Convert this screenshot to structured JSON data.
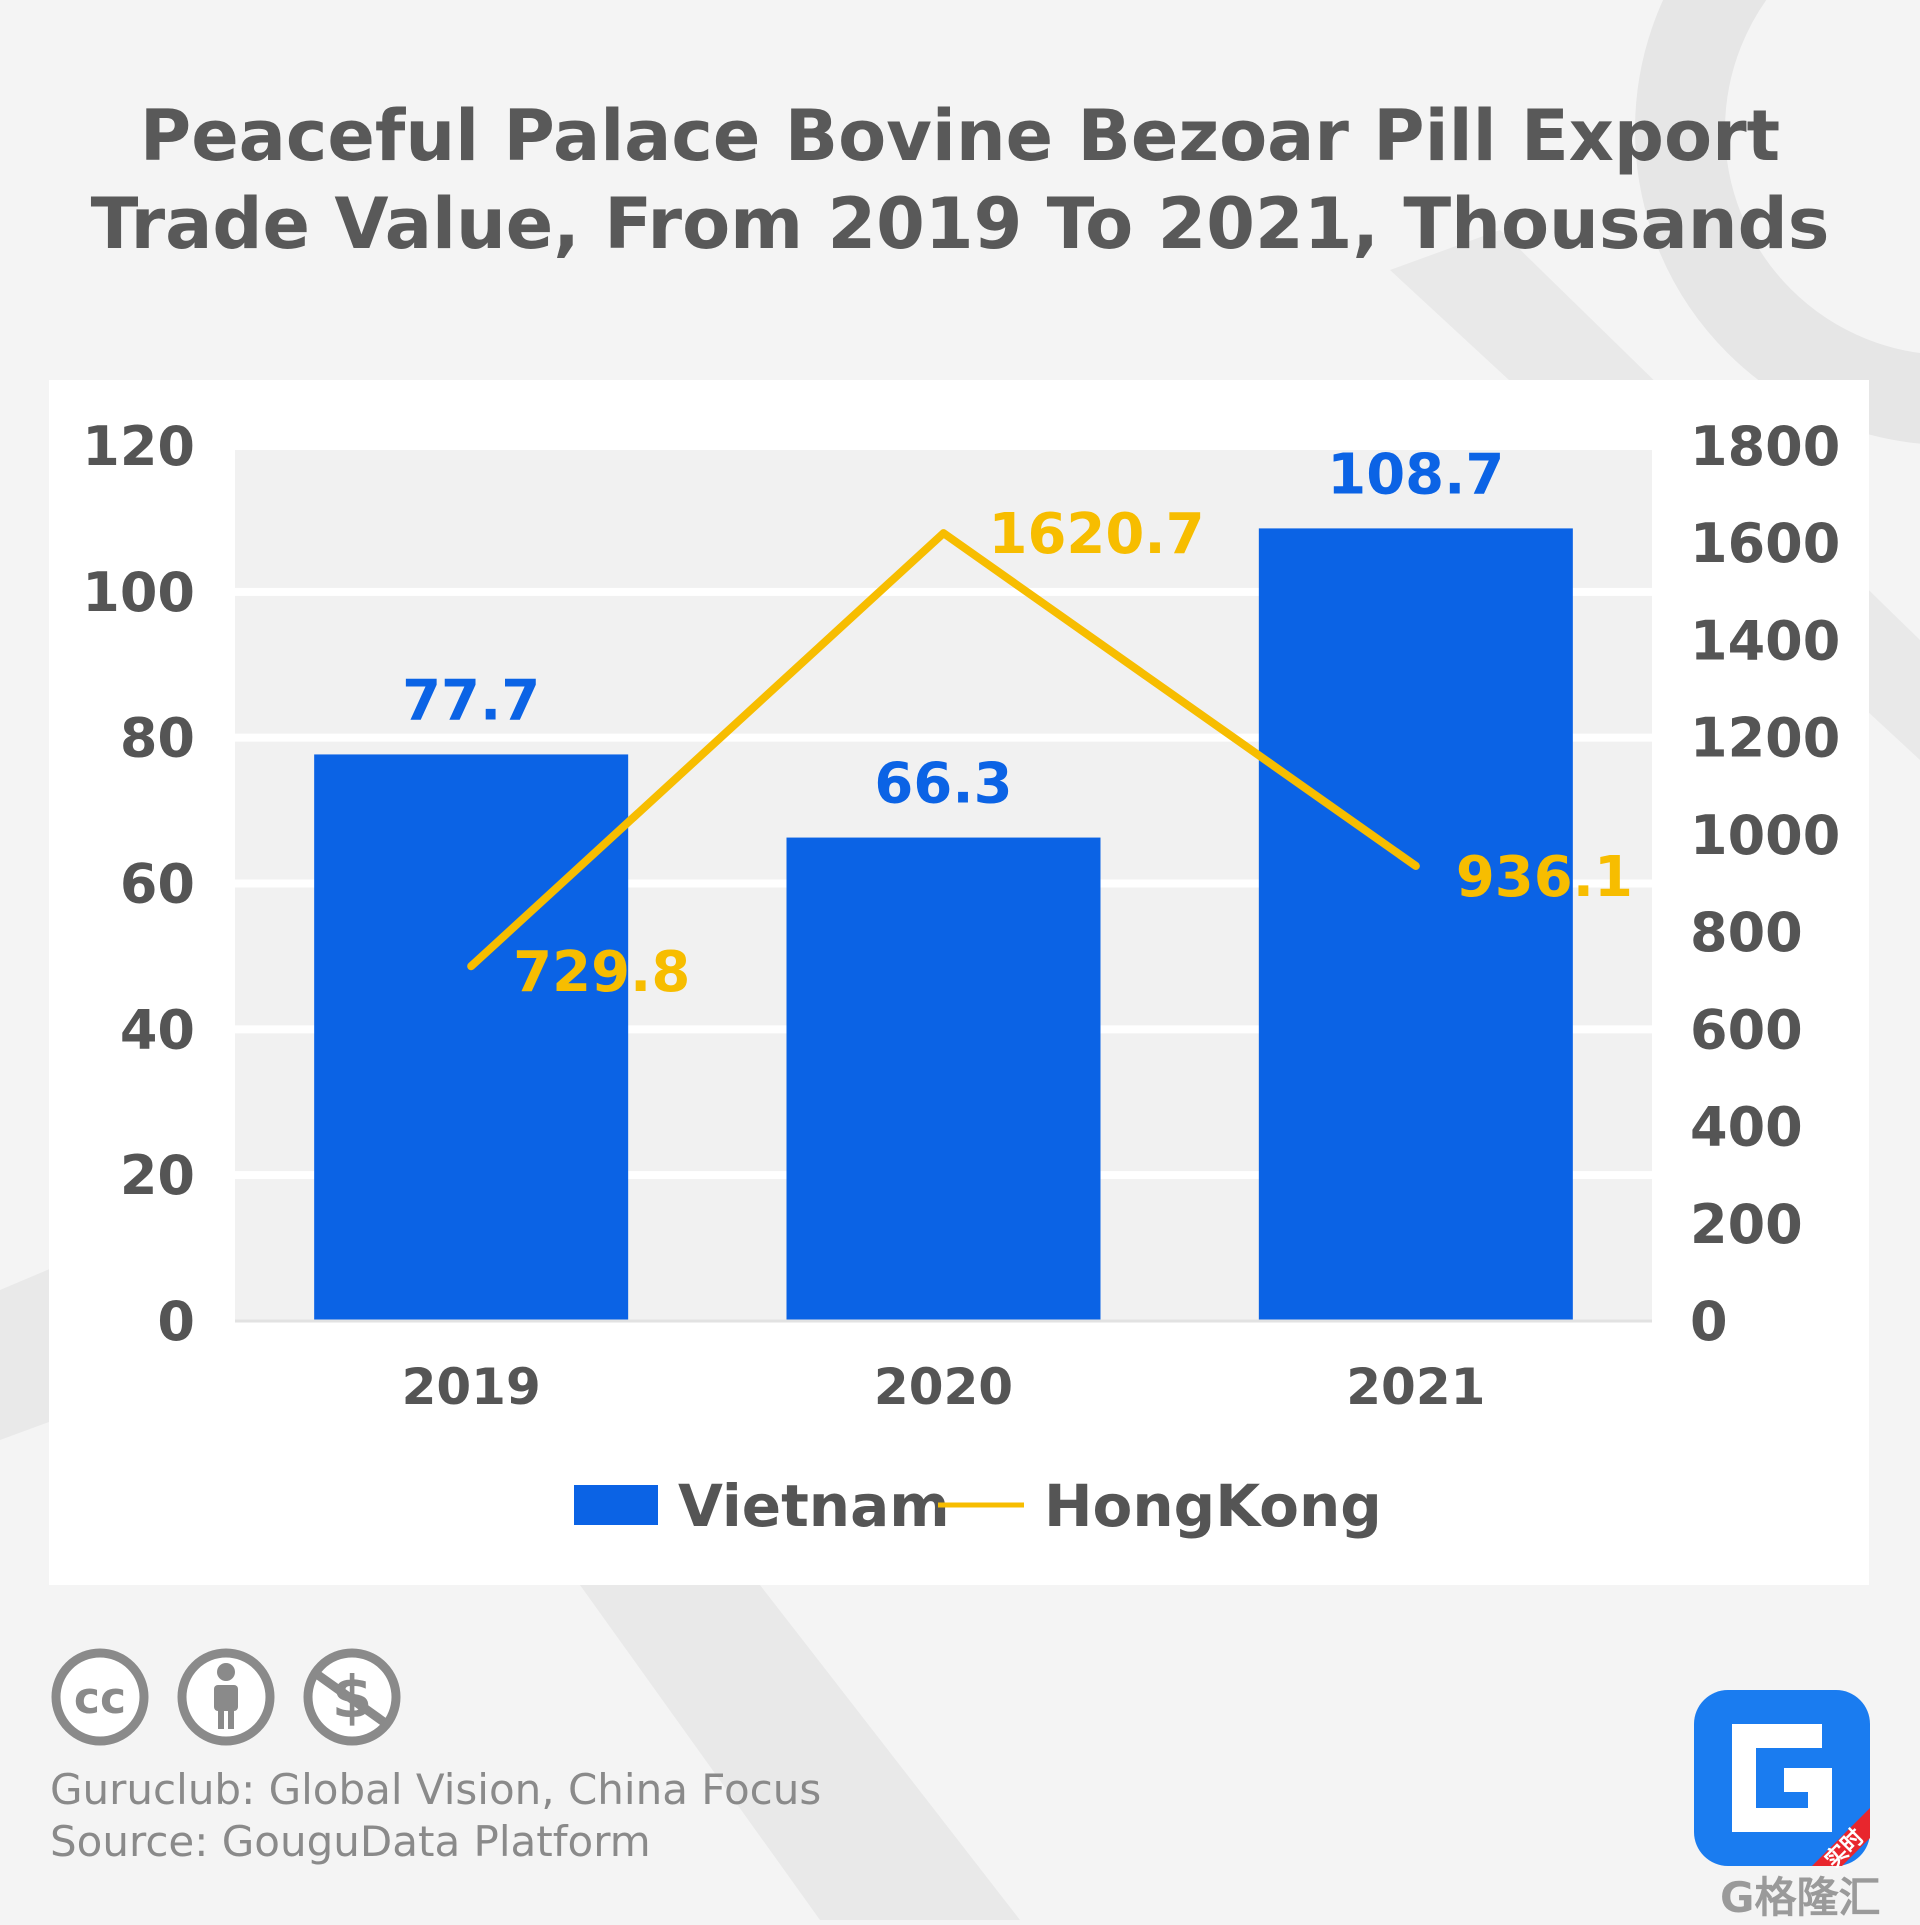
{
  "title": {
    "line1": "Peaceful Palace Bovine Bezoar Pill Export",
    "line2": "Trade Value, From 2019 To 2021, Thousands"
  },
  "chart_data": {
    "type": "bar",
    "title": "Peaceful Palace Bovine Bezoar Pill Export Trade Value, From 2019 To 2021, Thousands",
    "categories": [
      "2019",
      "2020",
      "2021"
    ],
    "series": [
      {
        "name": "Vietnam",
        "type": "bar",
        "axis": "left",
        "values": [
          77.7,
          66.3,
          108.7
        ],
        "color": "#0b63e5"
      },
      {
        "name": "HongKong",
        "type": "line",
        "axis": "right",
        "values": [
          729.8,
          1620.7,
          936.1
        ],
        "color": "#f7bd00"
      }
    ],
    "y_left": {
      "min": 0,
      "max": 120,
      "step": 20
    },
    "y_right": {
      "min": 0,
      "max": 1800,
      "step": 200
    },
    "grid": true,
    "legend": "bottom"
  },
  "footer": {
    "line1": "Guruclub: Global Vision, China Focus",
    "line2": "Source: GouguData Platform"
  },
  "badges": {
    "cc": "cc",
    "dollar": "$"
  },
  "brand": {
    "wordmark": "G格隆汇",
    "tag": "实时"
  },
  "colors": {
    "bar": "#0b63e5",
    "line": "#f7bd00",
    "text": "#555555",
    "brand": "#1a7cf0"
  },
  "icons": [
    "creative-commons-icon",
    "attribution-icon",
    "non-commercial-icon",
    "gelonghui-logo-icon"
  ]
}
